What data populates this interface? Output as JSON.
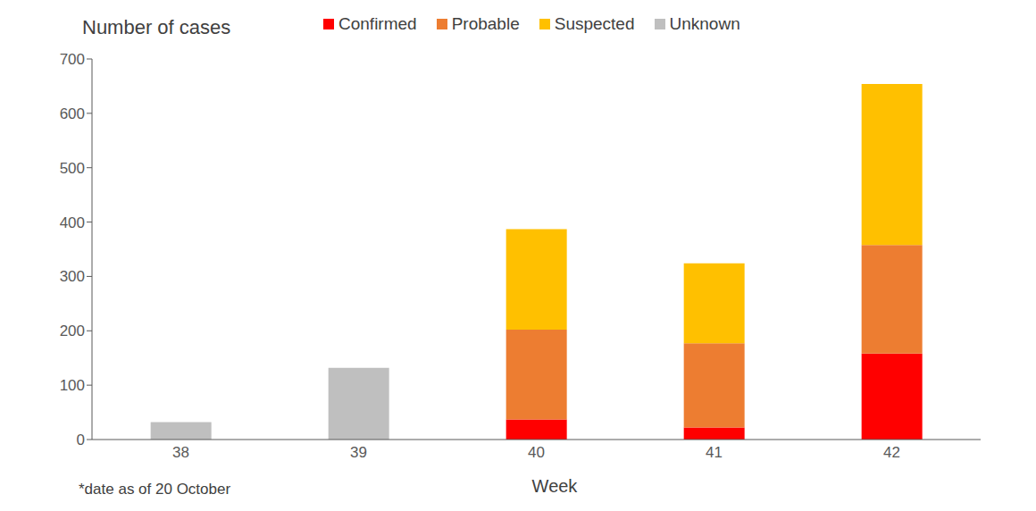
{
  "chart_data": {
    "type": "bar",
    "stacked": true,
    "grid": false,
    "legend": "top",
    "x_label": "Week",
    "y_label": "Number of cases",
    "footnote": "*date as of 20 October",
    "annotation": {
      "text": "*",
      "category": "42"
    },
    "categories": [
      "38",
      "39",
      "40",
      "41",
      "42"
    ],
    "series": [
      {
        "name": "Confirmed",
        "color": "#ff0000",
        "values": [
          null,
          null,
          37,
          22,
          158
        ]
      },
      {
        "name": "Probable",
        "color": "#ed7d31",
        "values": [
          null,
          null,
          165,
          155,
          200
        ]
      },
      {
        "name": "Suspected",
        "color": "#ffc000",
        "values": [
          null,
          null,
          185,
          147,
          296
        ]
      },
      {
        "name": "Unknown",
        "color": "#bfbfbf",
        "values": [
          32,
          132,
          null,
          null,
          null
        ]
      }
    ],
    "ylim": [
      0,
      700
    ],
    "yticks": [
      0,
      100,
      200,
      300,
      400,
      500,
      600,
      700
    ]
  }
}
